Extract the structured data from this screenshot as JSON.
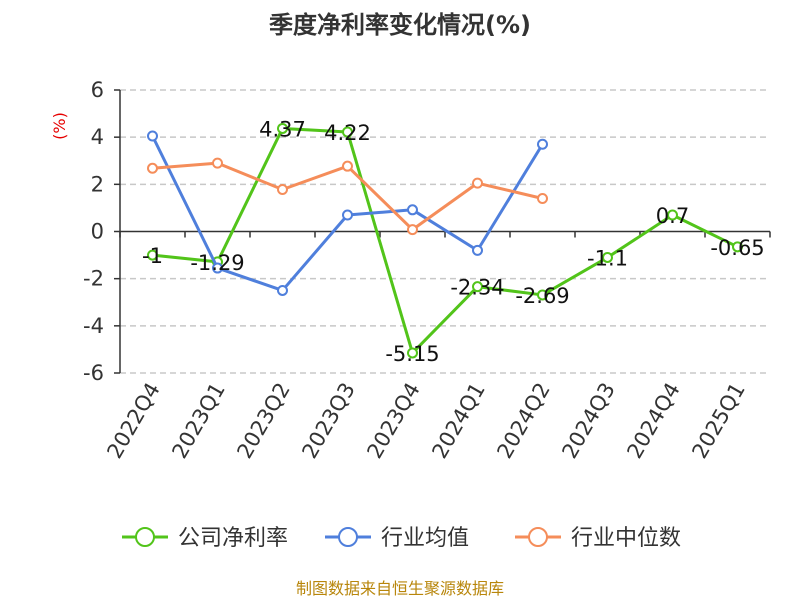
{
  "chart_data": {
    "type": "line",
    "title": "季度净利率变化情况(%)",
    "ylabel": "(%)",
    "ylim": [
      -6,
      6
    ],
    "yticks": [
      6,
      4,
      2,
      0,
      -2,
      -4,
      -6
    ],
    "categories": [
      "2022Q4",
      "2023Q1",
      "2023Q2",
      "2023Q3",
      "2023Q4",
      "2024Q1",
      "2024Q2",
      "2024Q3",
      "2024Q4",
      "2025Q1"
    ],
    "grid": true,
    "legend_position": "bottom",
    "series": [
      {
        "name": "公司净利率",
        "color": "#52c41a",
        "values": [
          -1,
          -1.29,
          4.37,
          4.22,
          -5.15,
          -2.34,
          -2.69,
          -1.1,
          0.7,
          -0.65
        ],
        "labels": [
          "-1",
          "-1.29",
          "4.37",
          "4.22",
          "-5.15",
          "-2.34",
          "-2.69",
          "-1.1",
          "0.7",
          "-0.65"
        ]
      },
      {
        "name": "行业均值",
        "color": "#4f7fdc",
        "values": [
          4.05,
          -1.55,
          -2.5,
          0.7,
          0.92,
          -0.8,
          3.7,
          null,
          null,
          null
        ]
      },
      {
        "name": "行业中位数",
        "color": "#f58d5a",
        "values": [
          2.68,
          2.9,
          1.78,
          2.77,
          0.08,
          2.05,
          1.4,
          null,
          null,
          null
        ]
      }
    ],
    "source": "制图数据来自恒生聚源数据库"
  }
}
